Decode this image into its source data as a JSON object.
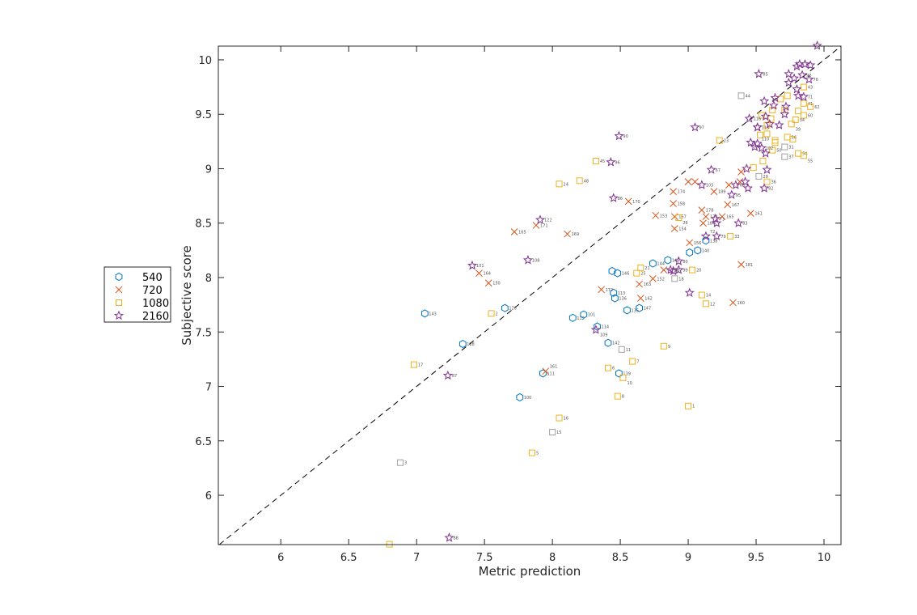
{
  "chart_data": {
    "type": "scatter",
    "xlabel": "Metric prediction",
    "ylabel": "Subjective score",
    "xlim": [
      5.54,
      10.125
    ],
    "ylim": [
      5.547,
      10.126
    ],
    "xticks": [
      "6",
      "6.5",
      "7",
      "7.5",
      "8",
      "8.5",
      "9",
      "9.5",
      "10"
    ],
    "yticks": [
      "6",
      "6.5",
      "7",
      "7.5",
      "8",
      "8.5",
      "9",
      "9.5",
      "10"
    ],
    "grid": false,
    "legend_position": "left-outside",
    "reference_line": {
      "type": "identity",
      "style": "dashed",
      "color": "#000000"
    },
    "series": [
      {
        "name": "540",
        "marker": "hexagon",
        "color": "#0072BD",
        "points": [
          [
            7.06,
            7.67,
            "143"
          ],
          [
            7.34,
            7.39,
            "128"
          ],
          [
            7.65,
            7.72,
            "126"
          ],
          [
            7.76,
            6.9,
            "100"
          ],
          [
            7.93,
            7.12,
            "111"
          ],
          [
            8.15,
            7.63,
            "112"
          ],
          [
            8.23,
            7.66,
            "101"
          ],
          [
            8.33,
            7.55,
            "114"
          ],
          [
            8.41,
            7.4,
            "142"
          ],
          [
            8.49,
            7.12,
            "139"
          ],
          [
            8.44,
            8.06,
            ""
          ],
          [
            8.48,
            8.04,
            "146"
          ],
          [
            8.45,
            7.86,
            "113"
          ],
          [
            8.46,
            7.81,
            "136"
          ],
          [
            8.55,
            7.7,
            "135"
          ],
          [
            8.64,
            7.72,
            "147"
          ],
          [
            8.74,
            8.13,
            "144"
          ],
          [
            8.85,
            8.16,
            "145"
          ],
          [
            9.01,
            8.23,
            ""
          ],
          [
            9.07,
            8.25,
            "140"
          ],
          [
            9.13,
            8.34,
            "138"
          ]
        ]
      },
      {
        "name": "720",
        "marker": "x",
        "color": "#D95319",
        "points": [
          [
            7.46,
            8.04,
            "164"
          ],
          [
            7.53,
            7.95,
            "150"
          ],
          [
            7.72,
            8.42,
            "165"
          ],
          [
            7.88,
            8.48,
            "171"
          ],
          [
            7.95,
            7.14,
            "161"
          ],
          [
            8.11,
            8.4,
            "169"
          ],
          [
            8.36,
            7.89,
            "172"
          ],
          [
            8.56,
            8.7,
            "170"
          ],
          [
            8.64,
            7.94,
            "163"
          ],
          [
            8.65,
            7.81,
            "162"
          ],
          [
            8.74,
            7.99,
            "152"
          ],
          [
            8.76,
            8.57,
            "153"
          ],
          [
            8.82,
            8.07,
            ""
          ],
          [
            8.89,
            8.79,
            "174"
          ],
          [
            8.89,
            8.68,
            "158"
          ],
          [
            8.9,
            8.56,
            "157"
          ],
          [
            8.9,
            8.45,
            "154"
          ],
          [
            9.01,
            8.32,
            "156"
          ],
          [
            9.0,
            8.88,
            ""
          ],
          [
            9.05,
            8.88,
            ""
          ],
          [
            9.1,
            8.62,
            "178"
          ],
          [
            9.13,
            8.56,
            "173"
          ],
          [
            9.11,
            8.5,
            "184"
          ],
          [
            9.19,
            8.79,
            "189"
          ],
          [
            9.29,
            8.67,
            "167"
          ],
          [
            9.25,
            8.56,
            "165"
          ],
          [
            9.3,
            8.85,
            ""
          ],
          [
            9.39,
            8.97,
            ""
          ],
          [
            9.39,
            8.12,
            "181"
          ],
          [
            9.33,
            7.77,
            "160"
          ],
          [
            9.46,
            8.59,
            "161"
          ],
          [
            9.38,
            8.88,
            ""
          ]
        ]
      },
      {
        "name": "1080",
        "marker": "square",
        "color": "#EDB120",
        "points": [
          [
            6.8,
            5.55,
            ""
          ],
          [
            6.98,
            7.2,
            "17"
          ],
          [
            7.55,
            7.67,
            "2"
          ],
          [
            7.85,
            6.39,
            "5"
          ],
          [
            8.05,
            8.86,
            "24"
          ],
          [
            8.05,
            6.71,
            "16"
          ],
          [
            8.2,
            8.89,
            "48"
          ],
          [
            8.32,
            9.07,
            "45"
          ],
          [
            8.41,
            7.17,
            "6"
          ],
          [
            8.48,
            6.91,
            "8"
          ],
          [
            8.52,
            7.08,
            "10"
          ],
          [
            8.59,
            7.23,
            "7"
          ],
          [
            8.65,
            8.09,
            "21"
          ],
          [
            8.62,
            8.04,
            "25"
          ],
          [
            8.82,
            7.37,
            "9"
          ],
          [
            9.0,
            6.82,
            "1"
          ],
          [
            9.03,
            8.07,
            "20"
          ],
          [
            9.1,
            7.84,
            "14"
          ],
          [
            9.13,
            7.76,
            "12"
          ],
          [
            9.23,
            9.26,
            "23"
          ],
          [
            8.93,
            8.55,
            "26"
          ],
          [
            9.31,
            8.38,
            "33"
          ],
          [
            9.73,
            9.67,
            ""
          ],
          [
            9.68,
            9.64,
            ""
          ],
          [
            9.85,
            9.75,
            "43"
          ],
          [
            9.85,
            9.6,
            "41"
          ],
          [
            9.9,
            9.57,
            "62"
          ],
          [
            9.81,
            9.53,
            ""
          ],
          [
            9.85,
            9.49,
            "60"
          ],
          [
            9.71,
            9.54,
            ""
          ],
          [
            9.62,
            9.54,
            ""
          ],
          [
            9.54,
            9.49,
            ""
          ],
          [
            9.61,
            9.46,
            ""
          ],
          [
            9.79,
            9.45,
            "34"
          ],
          [
            9.76,
            9.41,
            "39"
          ],
          [
            9.58,
            9.4,
            ""
          ],
          [
            9.53,
            9.31,
            ""
          ],
          [
            9.58,
            9.32,
            ""
          ],
          [
            9.73,
            9.29,
            "56"
          ],
          [
            9.77,
            9.27,
            ""
          ],
          [
            9.64,
            9.26,
            ""
          ],
          [
            9.64,
            9.24,
            ""
          ],
          [
            9.62,
            9.17,
            "50"
          ],
          [
            9.81,
            9.14,
            "54"
          ],
          [
            9.85,
            9.12,
            "55"
          ],
          [
            9.48,
            9.01,
            ""
          ],
          [
            9.58,
            8.88,
            "36"
          ],
          [
            9.55,
            9.07,
            ""
          ]
        ]
      },
      {
        "name": "",
        "marker": "square",
        "color": "#A0A0A0",
        "points": [
          [
            6.88,
            6.3,
            "3"
          ],
          [
            8.0,
            6.58,
            "15"
          ],
          [
            8.51,
            7.34,
            "11"
          ],
          [
            8.9,
            7.99,
            "18"
          ],
          [
            9.39,
            9.67,
            "44"
          ],
          [
            9.71,
            9.11,
            "37"
          ],
          [
            9.71,
            9.2,
            "31"
          ],
          [
            9.52,
            8.93,
            "29"
          ]
        ]
      },
      {
        "name": "2160",
        "marker": "star",
        "color": "#7E2F8E",
        "points": [
          [
            7.24,
            5.61,
            "88"
          ],
          [
            7.23,
            7.1,
            "87"
          ],
          [
            7.41,
            8.11,
            "101"
          ],
          [
            7.82,
            8.16,
            "108"
          ],
          [
            7.91,
            8.53,
            "122"
          ],
          [
            8.32,
            7.52,
            "109"
          ],
          [
            8.43,
            9.06,
            "96"
          ],
          [
            8.49,
            9.3,
            "90"
          ],
          [
            8.45,
            8.73,
            "86"
          ],
          [
            8.89,
            8.06,
            ""
          ],
          [
            8.93,
            8.07,
            "99"
          ],
          [
            8.93,
            8.15,
            "80"
          ],
          [
            8.87,
            8.07,
            "89"
          ],
          [
            9.01,
            7.86,
            ""
          ],
          [
            9.05,
            9.38,
            "97"
          ],
          [
            9.17,
            8.99,
            "67"
          ],
          [
            9.13,
            8.38,
            "72"
          ],
          [
            9.21,
            8.38,
            "79"
          ],
          [
            9.2,
            8.54,
            "73"
          ],
          [
            9.21,
            8.5,
            ""
          ],
          [
            9.37,
            8.5,
            "83"
          ],
          [
            9.32,
            8.76,
            "95"
          ],
          [
            9.35,
            8.85,
            "65"
          ],
          [
            9.42,
            8.88,
            ""
          ],
          [
            9.52,
            9.87,
            "85"
          ],
          [
            9.51,
            9.38,
            "115"
          ],
          [
            9.45,
            9.46,
            "116"
          ],
          [
            9.54,
            9.19,
            "102"
          ],
          [
            9.56,
            8.82,
            "82"
          ],
          [
            9.95,
            10.13,
            ""
          ],
          [
            9.8,
            9.94,
            ""
          ],
          [
            9.82,
            9.96,
            ""
          ],
          [
            9.86,
            9.96,
            ""
          ],
          [
            9.9,
            9.95,
            ""
          ],
          [
            9.74,
            9.87,
            ""
          ],
          [
            9.84,
            9.86,
            "92"
          ],
          [
            9.78,
            9.83,
            ""
          ],
          [
            9.89,
            9.82,
            "76"
          ],
          [
            9.74,
            9.79,
            ""
          ],
          [
            9.8,
            9.73,
            ""
          ],
          [
            9.81,
            9.67,
            ""
          ],
          [
            9.85,
            9.66,
            "71"
          ],
          [
            9.64,
            9.65,
            ""
          ],
          [
            9.56,
            9.62,
            ""
          ],
          [
            9.63,
            9.58,
            ""
          ],
          [
            9.72,
            9.57,
            ""
          ],
          [
            9.71,
            9.5,
            ""
          ],
          [
            9.57,
            9.48,
            ""
          ],
          [
            9.51,
            9.38,
            ""
          ],
          [
            9.6,
            9.41,
            ""
          ],
          [
            9.67,
            9.4,
            ""
          ],
          [
            9.46,
            9.24,
            ""
          ],
          [
            9.51,
            9.23,
            "110"
          ],
          [
            9.49,
            9.2,
            ""
          ],
          [
            9.57,
            9.14,
            ""
          ],
          [
            9.43,
            9.0,
            ""
          ],
          [
            9.58,
            8.99,
            ""
          ],
          [
            9.44,
            8.82,
            ""
          ],
          [
            9.1,
            8.85,
            "105"
          ]
        ]
      }
    ]
  }
}
